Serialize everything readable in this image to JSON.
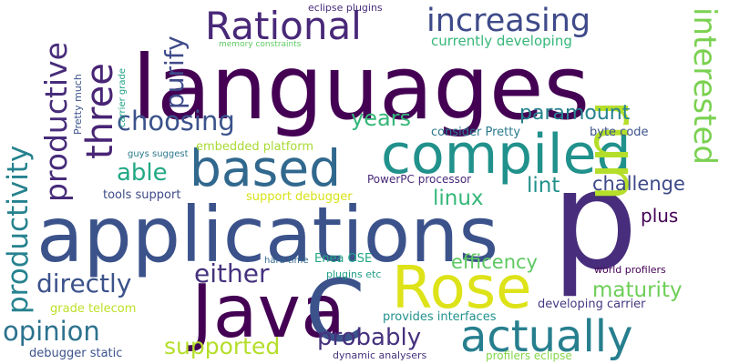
{
  "words": [
    {
      "text": "languages",
      "color": "#440154"
    },
    {
      "text": "applications",
      "color": "#3b528b"
    },
    {
      "text": "p",
      "color": "#472d7b"
    },
    {
      "text": "Java",
      "color": "#440154"
    },
    {
      "text": "C",
      "color": "#3b528b"
    },
    {
      "text": "compiled",
      "color": "#21918c"
    },
    {
      "text": "based",
      "color": "#31688e"
    },
    {
      "text": "Rose",
      "color": "#dde318"
    },
    {
      "text": "run",
      "color": "#b5de2b"
    },
    {
      "text": "interested",
      "color": "#7ad151"
    },
    {
      "text": "Rational",
      "color": "#482878"
    },
    {
      "text": "increasing",
      "color": "#3e4a89"
    },
    {
      "text": "three",
      "color": "#482475"
    },
    {
      "text": "productive",
      "color": "#472c7a"
    },
    {
      "text": "productivity",
      "color": "#26828e"
    },
    {
      "text": "choosing",
      "color": "#3b528b"
    },
    {
      "text": "purify",
      "color": "#3e4a89"
    },
    {
      "text": "actually",
      "color": "#277f8e"
    },
    {
      "text": "either",
      "color": "#46327e"
    },
    {
      "text": "directly",
      "color": "#3b528b"
    },
    {
      "text": "opinion",
      "color": "#2c728e"
    },
    {
      "text": "probably",
      "color": "#46327e"
    },
    {
      "text": "supported",
      "color": "#b5de2b"
    },
    {
      "text": "able",
      "color": "#22a884"
    },
    {
      "text": "years",
      "color": "#35b779"
    },
    {
      "text": "paramount",
      "color": "#26828e"
    },
    {
      "text": "maturity",
      "color": "#6ece58"
    },
    {
      "text": "efficency",
      "color": "#5ec962"
    },
    {
      "text": "lint",
      "color": "#21918c"
    },
    {
      "text": "challenge",
      "color": "#3e4a89"
    },
    {
      "text": "linux",
      "color": "#35b779"
    },
    {
      "text": "plus",
      "color": "#440154"
    },
    {
      "text": "currently developing",
      "color": "#35b779"
    },
    {
      "text": "consider Pretty",
      "color": "#2a788e"
    },
    {
      "text": "byte code",
      "color": "#3b528b"
    },
    {
      "text": "PowerPC processor",
      "color": "#482878"
    },
    {
      "text": "embedded platform",
      "color": "#a8db34"
    },
    {
      "text": "tools support",
      "color": "#3e4a89"
    },
    {
      "text": "support debugger",
      "color": "#d8e219"
    },
    {
      "text": "guys suggest",
      "color": "#2a788e"
    },
    {
      "text": "hard time",
      "color": "#31688e"
    },
    {
      "text": "Enea OSE",
      "color": "#22a884"
    },
    {
      "text": "plugins etc",
      "color": "#1f9f88"
    },
    {
      "text": "provides interfaces",
      "color": "#21918c"
    },
    {
      "text": "developing carrier",
      "color": "#443983"
    },
    {
      "text": "grade telecom",
      "color": "#bddf26"
    },
    {
      "text": "debugger static",
      "color": "#3b528b"
    },
    {
      "text": "dynamic analysers",
      "color": "#46327e"
    },
    {
      "text": "profilers eclipse",
      "color": "#86d549"
    },
    {
      "text": "world profilers",
      "color": "#440154"
    },
    {
      "text": "eclipse plugins",
      "color": "#472d7b"
    },
    {
      "text": "memory constraints",
      "color": "#5ec962"
    },
    {
      "text": "Pretty much",
      "color": "#3b528b"
    },
    {
      "text": "carrier grade",
      "color": "#1fa187"
    }
  ]
}
